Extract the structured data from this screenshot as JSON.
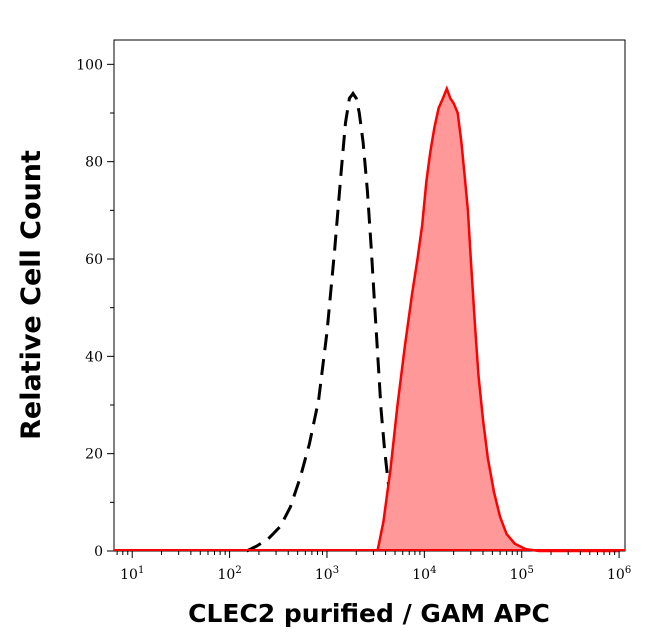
{
  "chart_data": {
    "type": "area",
    "title": "",
    "xlabel": "CLEC2 purified / GAM APC",
    "ylabel": "Relative Cell Count",
    "xscale": "log",
    "xlim": [
      6.5,
      1150000
    ],
    "ylim": [
      0,
      105
    ],
    "grid": false,
    "legend": "none",
    "x_ticks": [
      {
        "base": "10",
        "exp": "1",
        "value": 10
      },
      {
        "base": "10",
        "exp": "2",
        "value": 100
      },
      {
        "base": "10",
        "exp": "3",
        "value": 1000
      },
      {
        "base": "10",
        "exp": "4",
        "value": 10000
      },
      {
        "base": "10",
        "exp": "5",
        "value": 100000
      },
      {
        "base": "10",
        "exp": "6",
        "value": 1000000
      }
    ],
    "y_ticks": [
      "0",
      "20",
      "40",
      "60",
      "80",
      "100"
    ],
    "colors": {
      "stained_line": "#ff0000",
      "stained_fill": "#ff9999",
      "control_line": "#000000"
    },
    "series": [
      {
        "style": "dashed-black-line",
        "x": [
          150,
          190,
          250,
          330,
          420,
          530,
          660,
          820,
          1000,
          1200,
          1400,
          1550,
          1700,
          1850,
          2000,
          2150,
          2350,
          2600,
          2850,
          3100,
          3350,
          3600,
          3900,
          4200,
          4600,
          5100,
          5700,
          6500
        ],
        "y": [
          0,
          1,
          2.5,
          5,
          9,
          15,
          22,
          31,
          45,
          62,
          78,
          88,
          93,
          94,
          93,
          90,
          84,
          74,
          62,
          50,
          39,
          29,
          21,
          15,
          9,
          4,
          1,
          0
        ]
      },
      {
        "style": "red-filled-area",
        "x": [
          3300,
          3800,
          4500,
          5300,
          6300,
          7500,
          8500,
          9500,
          10500,
          11500,
          12700,
          14000,
          15500,
          17000,
          18500,
          20000,
          22000,
          24000,
          26000,
          28000,
          30000,
          33000,
          36000,
          40000,
          45000,
          52000,
          60000,
          70000,
          85000,
          110000,
          150000,
          300000,
          1000000
        ],
        "y": [
          0,
          6,
          17,
          30,
          42,
          53,
          60,
          67,
          76,
          82,
          87,
          91,
          93,
          95,
          93,
          92,
          90,
          84,
          77,
          70,
          60,
          47,
          36,
          27,
          19,
          12,
          7,
          3.5,
          1.5,
          0.4,
          0,
          0,
          0
        ]
      }
    ]
  }
}
